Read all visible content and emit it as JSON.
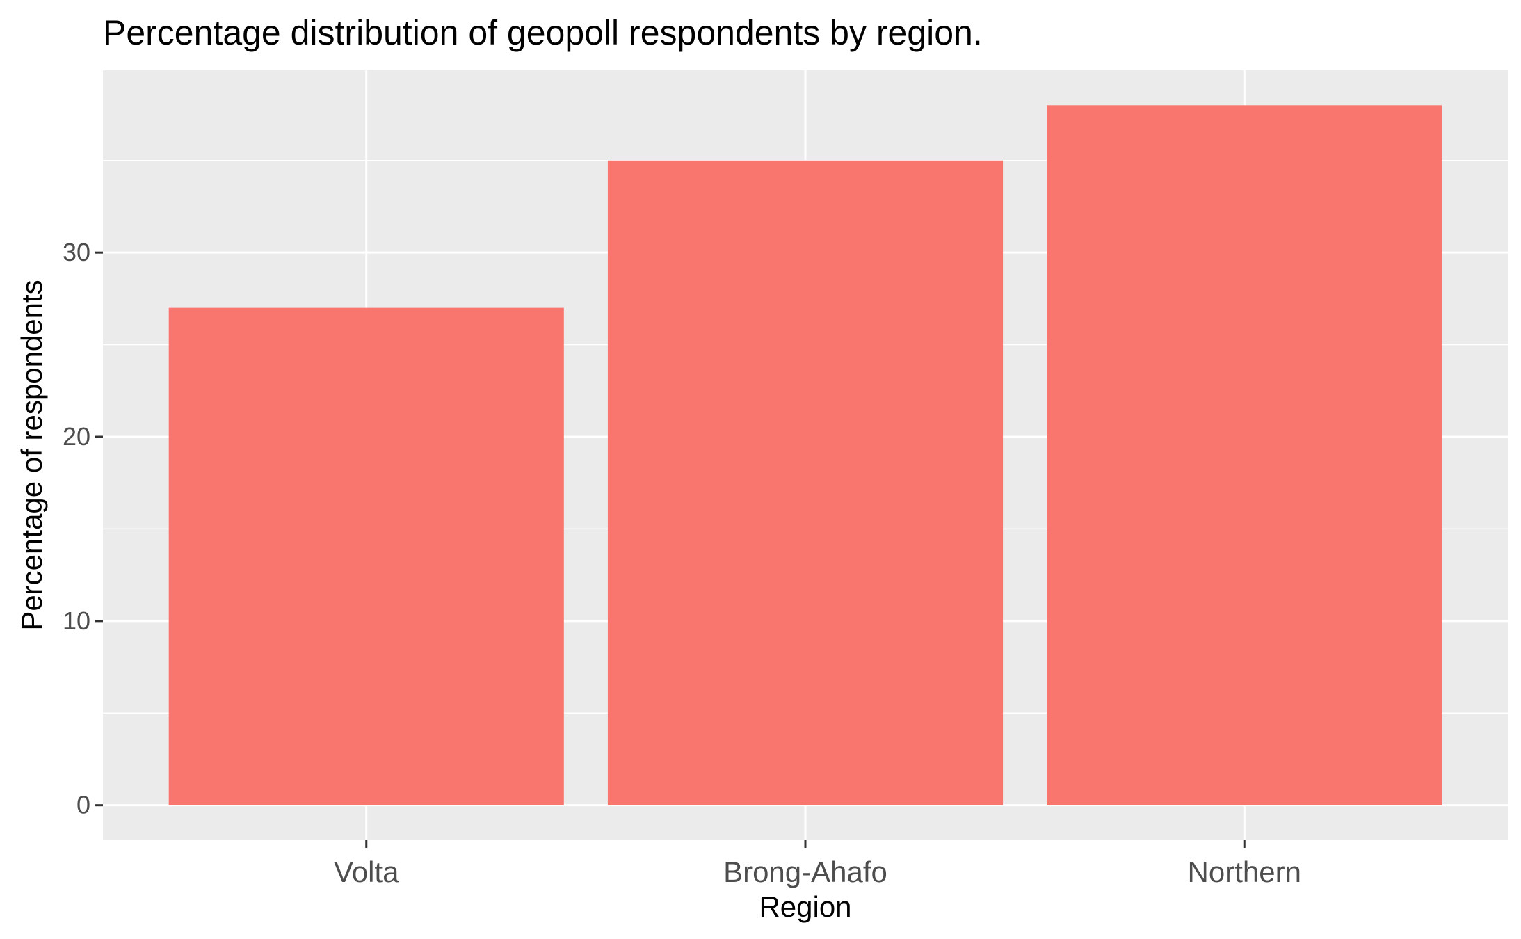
{
  "chart_data": {
    "type": "bar",
    "title": "Percentage distribution of geopoll respondents by region.",
    "xlabel": "Region",
    "ylabel": "Percentage of respondents",
    "categories": [
      "Volta",
      "Brong-Ahafo",
      "Northern"
    ],
    "values": [
      27,
      35,
      38
    ],
    "ylim": [
      -1.9,
      39.9
    ],
    "yticks": [
      0,
      10,
      20,
      30
    ],
    "ytick_labels": [
      "0",
      "10",
      "20",
      "30"
    ],
    "grid": true,
    "legend": "none",
    "colors": {
      "bar": "#F8766D",
      "panel": "#EBEBEB",
      "grid": "#FFFFFF",
      "tick": "#333333"
    }
  }
}
